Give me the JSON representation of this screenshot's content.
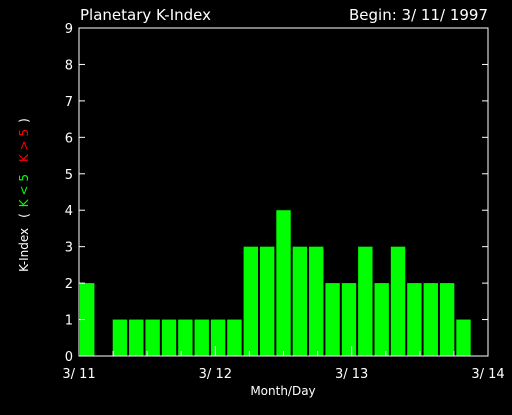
{
  "chart_data": {
    "type": "bar",
    "title": "Planetary K-Index",
    "begin_label": "Begin: 3/ 11/ 1997",
    "xlabel": "Month/Day",
    "ylabel": {
      "main": "K-Index",
      "paren_open": "(",
      "green": "K < 5",
      "red": "K > 5",
      "paren_close": ")"
    },
    "ylim": [
      0,
      9
    ],
    "y_ticks": [
      "0",
      "1",
      "2",
      "3",
      "4",
      "5",
      "6",
      "7",
      "8",
      "9"
    ],
    "x_tick_labels": [
      "3/ 11",
      "3/ 12",
      "3/ 13",
      "3/ 14"
    ],
    "bars_per_day": 8,
    "days": 3,
    "values": [
      2,
      0,
      1,
      1,
      1,
      1,
      1,
      1,
      1,
      1,
      3,
      3,
      4,
      3,
      3,
      2,
      2,
      3,
      2,
      3,
      2,
      2,
      2,
      1
    ],
    "colors": {
      "background": "#000000",
      "text": "#ffffff",
      "axis": "#ffffff",
      "bar_low": "#00ff00",
      "bar_high": "#ff0000",
      "label_green": "#00ff00",
      "label_red": "#ff0000"
    },
    "threshold": 5,
    "grid": false
  }
}
